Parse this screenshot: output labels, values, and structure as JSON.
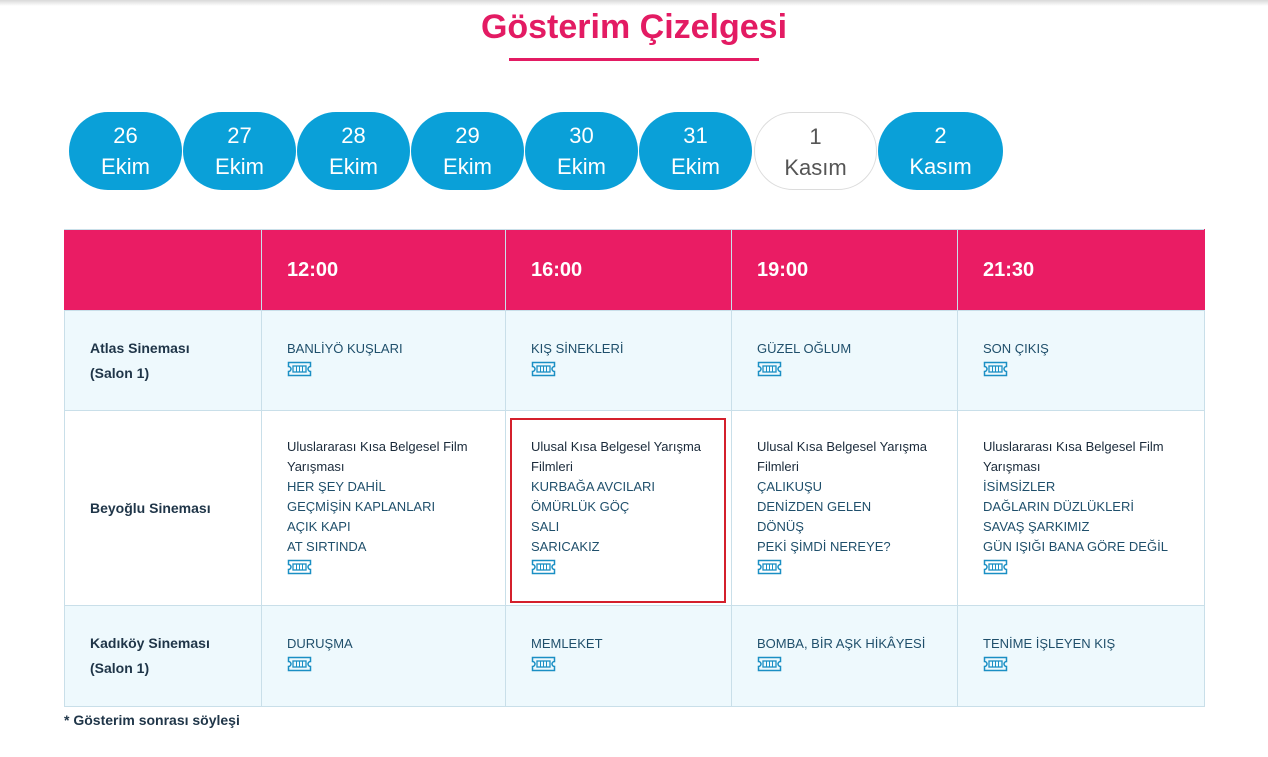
{
  "page": {
    "title": "Gösterim Çizelgesi",
    "footnote": "* Gösterim sonrası söyleşi",
    "colors": {
      "accent": "#e31b63",
      "date_blue": "#0aa0d8",
      "highlight": "#d4202c"
    }
  },
  "dates": [
    {
      "day": "26",
      "month": "Ekim"
    },
    {
      "day": "27",
      "month": "Ekim"
    },
    {
      "day": "28",
      "month": "Ekim"
    },
    {
      "day": "29",
      "month": "Ekim"
    },
    {
      "day": "30",
      "month": "Ekim"
    },
    {
      "day": "31",
      "month": "Ekim"
    },
    {
      "day": "1",
      "month": "Kasım",
      "active": true
    },
    {
      "day": "2",
      "month": "Kasım"
    }
  ],
  "schedule": {
    "times": [
      "12:00",
      "16:00",
      "19:00",
      "21:30"
    ],
    "rows": [
      {
        "venue": [
          "Atlas Sineması",
          "(Salon 1)"
        ],
        "cells": [
          {
            "category": [],
            "films": [
              "BANLİYÖ KUŞLARI"
            ]
          },
          {
            "category": [],
            "films": [
              "KIŞ SİNEKLERİ"
            ]
          },
          {
            "category": [],
            "films": [
              "GÜZEL OĞLUM"
            ]
          },
          {
            "category": [],
            "films": [
              "SON ÇIKIŞ"
            ]
          }
        ]
      },
      {
        "venue": [
          "Beyoğlu Sineması"
        ],
        "cells": [
          {
            "category": [
              "Uluslararası Kısa Belgesel Film",
              "Yarışması"
            ],
            "films": [
              "HER ŞEY DAHİL",
              "GEÇMİŞİN KAPLANLARI",
              "AÇIK KAPI",
              "AT SIRTINDA"
            ]
          },
          {
            "category": [
              "Ulusal Kısa Belgesel Yarışma",
              "Filmleri"
            ],
            "films": [
              "KURBAĞA AVCILARI",
              "ÖMÜRLÜK GÖÇ",
              "SALI",
              "SARICAKIZ"
            ]
          },
          {
            "category": [
              "Ulusal Kısa Belgesel Yarışma",
              "Filmleri"
            ],
            "films": [
              "ÇALIKUŞU",
              "DENİZDEN GELEN",
              "DÖNÜŞ",
              "PEKİ ŞİMDİ NEREYE?"
            ]
          },
          {
            "category": [
              "Uluslararası Kısa Belgesel Film",
              "Yarışması"
            ],
            "films": [
              "İSİMSİZLER",
              "DAĞLARIN DÜZLÜKLERİ",
              "SAVAŞ ŞARKIMIZ",
              "GÜN IŞIĞI BANA GÖRE DEĞİL"
            ]
          }
        ]
      },
      {
        "venue": [
          "Kadıköy Sineması",
          "(Salon 1)"
        ],
        "cells": [
          {
            "category": [],
            "films": [
              "DURUŞMA"
            ]
          },
          {
            "category": [],
            "films": [
              "MEMLEKET"
            ]
          },
          {
            "category": [],
            "films": [
              "BOMBA, BİR AŞK HİKÂYESİ"
            ]
          },
          {
            "category": [],
            "films": [
              "TENİME İŞLEYEN KIŞ"
            ]
          }
        ]
      }
    ]
  },
  "icons": {
    "ticket": "ticket-icon"
  }
}
